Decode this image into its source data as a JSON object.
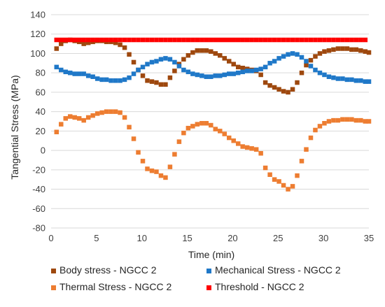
{
  "chart_data": {
    "type": "scatter",
    "title": "",
    "xlabel": "Time (min)",
    "ylabel": "Tangential Stress  (MPa)",
    "xlim": [
      0,
      35
    ],
    "ylim": [
      -80,
      140
    ],
    "xticks": [
      0,
      5,
      10,
      15,
      20,
      25,
      30,
      35
    ],
    "yticks": [
      -80,
      -60,
      -40,
      -20,
      0,
      20,
      40,
      60,
      80,
      100,
      120,
      140
    ],
    "grid": true,
    "legend": "bottom",
    "series": [
      {
        "name": "Body stress - NGCC 2",
        "color": "#9E480E",
        "points": [
          [
            0.6,
            105
          ],
          [
            1.1,
            110
          ],
          [
            1.6,
            113
          ],
          [
            2.1,
            114
          ],
          [
            2.6,
            113
          ],
          [
            3.1,
            112
          ],
          [
            3.6,
            110
          ],
          [
            4.1,
            111
          ],
          [
            4.6,
            112
          ],
          [
            5.1,
            113
          ],
          [
            5.6,
            113
          ],
          [
            6.1,
            112
          ],
          [
            6.6,
            112
          ],
          [
            7.1,
            111
          ],
          [
            7.6,
            109
          ],
          [
            8.1,
            106
          ],
          [
            8.6,
            99
          ],
          [
            9.1,
            91
          ],
          [
            9.6,
            83
          ],
          [
            10.1,
            77
          ],
          [
            10.6,
            72
          ],
          [
            11.1,
            71
          ],
          [
            11.6,
            70
          ],
          [
            12.1,
            68
          ],
          [
            12.6,
            68
          ],
          [
            13.1,
            75
          ],
          [
            13.6,
            82
          ],
          [
            14.1,
            89
          ],
          [
            14.6,
            94
          ],
          [
            15.1,
            98
          ],
          [
            15.6,
            101
          ],
          [
            16.1,
            103
          ],
          [
            16.6,
            103
          ],
          [
            17.1,
            103
          ],
          [
            17.6,
            102
          ],
          [
            18.1,
            100
          ],
          [
            18.6,
            98
          ],
          [
            19.1,
            95
          ],
          [
            19.6,
            92
          ],
          [
            20.1,
            89
          ],
          [
            20.6,
            86
          ],
          [
            21.1,
            85
          ],
          [
            21.6,
            84
          ],
          [
            22.1,
            83
          ],
          [
            22.6,
            82
          ],
          [
            23.1,
            78
          ],
          [
            23.6,
            70
          ],
          [
            24.1,
            67
          ],
          [
            24.6,
            65
          ],
          [
            25.1,
            63
          ],
          [
            25.6,
            61
          ],
          [
            26.1,
            60
          ],
          [
            26.6,
            63
          ],
          [
            27.1,
            70
          ],
          [
            27.6,
            80
          ],
          [
            28.1,
            88
          ],
          [
            28.6,
            93
          ],
          [
            29.1,
            97
          ],
          [
            29.6,
            100
          ],
          [
            30.1,
            102
          ],
          [
            30.6,
            103
          ],
          [
            31.1,
            104
          ],
          [
            31.6,
            105
          ],
          [
            32.1,
            105
          ],
          [
            32.6,
            105
          ],
          [
            33.1,
            104
          ],
          [
            33.6,
            104
          ],
          [
            34.1,
            103
          ],
          [
            34.6,
            102
          ],
          [
            35.0,
            101
          ]
        ]
      },
      {
        "name": "Mechanical Stress - NGCC 2",
        "color": "#1F78C8",
        "points": [
          [
            0.6,
            86
          ],
          [
            1.1,
            83
          ],
          [
            1.6,
            81
          ],
          [
            2.1,
            80
          ],
          [
            2.6,
            79
          ],
          [
            3.1,
            79
          ],
          [
            3.6,
            79
          ],
          [
            4.1,
            77
          ],
          [
            4.6,
            76
          ],
          [
            5.1,
            74
          ],
          [
            5.6,
            73
          ],
          [
            6.1,
            73
          ],
          [
            6.6,
            72
          ],
          [
            7.1,
            72
          ],
          [
            7.6,
            72
          ],
          [
            8.1,
            73
          ],
          [
            8.6,
            75
          ],
          [
            9.1,
            79
          ],
          [
            9.6,
            83
          ],
          [
            10.1,
            86
          ],
          [
            10.6,
            89
          ],
          [
            11.1,
            91
          ],
          [
            11.6,
            92
          ],
          [
            12.1,
            94
          ],
          [
            12.6,
            95
          ],
          [
            13.1,
            94
          ],
          [
            13.6,
            91
          ],
          [
            14.1,
            87
          ],
          [
            14.6,
            83
          ],
          [
            15.1,
            81
          ],
          [
            15.6,
            79
          ],
          [
            16.1,
            78
          ],
          [
            16.6,
            77
          ],
          [
            17.1,
            76
          ],
          [
            17.6,
            76
          ],
          [
            18.1,
            77
          ],
          [
            18.6,
            77
          ],
          [
            19.1,
            78
          ],
          [
            19.6,
            79
          ],
          [
            20.1,
            79
          ],
          [
            20.6,
            80
          ],
          [
            21.1,
            81
          ],
          [
            21.6,
            82
          ],
          [
            22.1,
            82
          ],
          [
            22.6,
            83
          ],
          [
            23.1,
            84
          ],
          [
            23.6,
            86
          ],
          [
            24.1,
            90
          ],
          [
            24.6,
            92
          ],
          [
            25.1,
            95
          ],
          [
            25.6,
            97
          ],
          [
            26.1,
            99
          ],
          [
            26.6,
            100
          ],
          [
            27.1,
            99
          ],
          [
            27.6,
            96
          ],
          [
            28.1,
            92
          ],
          [
            28.6,
            87
          ],
          [
            29.1,
            83
          ],
          [
            29.6,
            80
          ],
          [
            30.1,
            78
          ],
          [
            30.6,
            76
          ],
          [
            31.1,
            75
          ],
          [
            31.6,
            74
          ],
          [
            32.1,
            74
          ],
          [
            32.6,
            73
          ],
          [
            33.1,
            73
          ],
          [
            33.6,
            72
          ],
          [
            34.1,
            72
          ],
          [
            34.6,
            71
          ],
          [
            35.0,
            71
          ]
        ]
      },
      {
        "name": "Thermal Stress - NGCC 2",
        "color": "#ED7D31",
        "points": [
          [
            0.6,
            19
          ],
          [
            1.1,
            27
          ],
          [
            1.6,
            33
          ],
          [
            2.1,
            35
          ],
          [
            2.6,
            34
          ],
          [
            3.1,
            33
          ],
          [
            3.6,
            31
          ],
          [
            4.1,
            34
          ],
          [
            4.6,
            36
          ],
          [
            5.1,
            38
          ],
          [
            5.6,
            39
          ],
          [
            6.1,
            40
          ],
          [
            6.6,
            40
          ],
          [
            7.1,
            40
          ],
          [
            7.6,
            39
          ],
          [
            8.1,
            34
          ],
          [
            8.6,
            24
          ],
          [
            9.1,
            12
          ],
          [
            9.6,
            -2
          ],
          [
            10.1,
            -11
          ],
          [
            10.6,
            -19
          ],
          [
            11.1,
            -21
          ],
          [
            11.6,
            -22
          ],
          [
            12.1,
            -26
          ],
          [
            12.6,
            -28
          ],
          [
            13.1,
            -17
          ],
          [
            13.6,
            -4
          ],
          [
            14.1,
            9
          ],
          [
            14.6,
            18
          ],
          [
            15.1,
            23
          ],
          [
            15.6,
            25
          ],
          [
            16.1,
            27
          ],
          [
            16.6,
            28
          ],
          [
            17.1,
            28
          ],
          [
            17.6,
            26
          ],
          [
            18.1,
            22
          ],
          [
            18.6,
            20
          ],
          [
            19.1,
            17
          ],
          [
            19.6,
            13
          ],
          [
            20.1,
            10
          ],
          [
            20.6,
            7
          ],
          [
            21.1,
            4
          ],
          [
            21.6,
            3
          ],
          [
            22.1,
            2
          ],
          [
            22.6,
            1
          ],
          [
            23.1,
            -3
          ],
          [
            23.6,
            -18
          ],
          [
            24.1,
            -25
          ],
          [
            24.6,
            -30
          ],
          [
            25.1,
            -32
          ],
          [
            25.6,
            -36
          ],
          [
            26.1,
            -40
          ],
          [
            26.6,
            -37
          ],
          [
            27.1,
            -26
          ],
          [
            27.6,
            -11
          ],
          [
            28.1,
            1
          ],
          [
            28.6,
            13
          ],
          [
            29.1,
            21
          ],
          [
            29.6,
            25
          ],
          [
            30.1,
            28
          ],
          [
            30.6,
            30
          ],
          [
            31.1,
            31
          ],
          [
            31.6,
            31
          ],
          [
            32.1,
            32
          ],
          [
            32.6,
            32
          ],
          [
            33.1,
            32
          ],
          [
            33.6,
            31
          ],
          [
            34.1,
            31
          ],
          [
            34.6,
            30
          ],
          [
            35.0,
            30
          ]
        ]
      },
      {
        "name": "Threshold - NGCC 2",
        "color": "#FF0000",
        "x_range": [
          0.6,
          35.0
        ],
        "x_step": 0.5,
        "y": 114
      }
    ]
  }
}
